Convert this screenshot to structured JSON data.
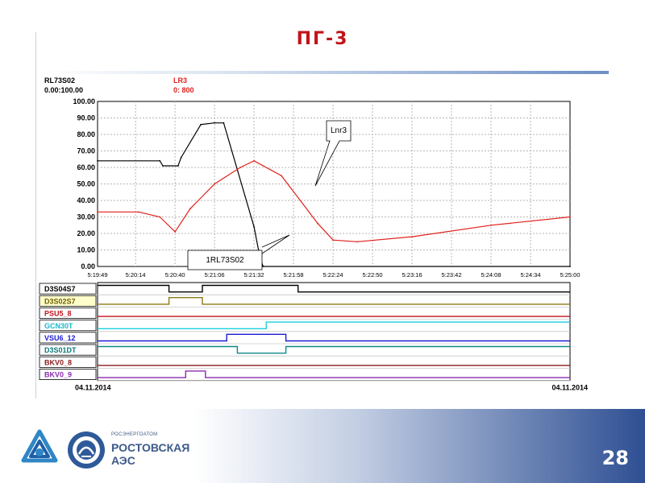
{
  "slide": {
    "title": "ПГ-3",
    "page_number": "28",
    "colors": {
      "title": "#c0141c",
      "accent": "#2e4f93"
    }
  },
  "branding": {
    "logo_icon": "rosatom-logo-icon",
    "emblem_icon": "rostov-npp-emblem-icon",
    "company_small": "РОСЭНЕРГОАТОМ",
    "plant_line1": "РОСТОВСКАЯ",
    "plant_line2": "АЭС"
  },
  "chart_data": {
    "type": "line",
    "x_ticks": [
      "5:19:49",
      "5:20:14",
      "5:20:40",
      "5:21:06",
      "5:21:32",
      "5:21:58",
      "5:22:24",
      "5:22:50",
      "5:23:16",
      "5:23:42",
      "5:24:08",
      "5:24:34",
      "5:25:00"
    ],
    "yticks": [
      "100.00",
      "90.00",
      "80.00",
      "70.00",
      "60.00",
      "50.00",
      "40.00",
      "30.00",
      "20.00",
      "10.00",
      "0.00"
    ],
    "ylim": [
      0,
      100
    ],
    "grid": true,
    "series_headers": [
      {
        "name": "RL73S02",
        "range": "0.00:100.00",
        "color": "#000000"
      },
      {
        "name": "LR3",
        "range": "0: 800",
        "color": "#e0201c"
      }
    ],
    "series": [
      {
        "name": "RL73S02",
        "color": "#000000",
        "x": [
          "5:19:49",
          "5:20:30",
          "5:20:32",
          "5:20:42",
          "5:20:44",
          "5:20:57",
          "5:21:06",
          "5:21:12",
          "5:21:32",
          "5:21:36",
          "5:21:38",
          "5:25:00"
        ],
        "values": [
          64,
          64,
          61,
          61,
          66,
          86,
          87,
          87,
          24,
          5,
          0,
          0
        ]
      },
      {
        "name": "LR3",
        "color": "#e0201c",
        "x": [
          "5:19:49",
          "5:20:16",
          "5:20:30",
          "5:20:40",
          "5:20:50",
          "5:21:06",
          "5:21:23",
          "5:21:32",
          "5:21:50",
          "5:22:14",
          "5:22:24",
          "5:22:40",
          "5:23:16",
          "5:24:08",
          "5:25:00"
        ],
        "values": [
          33,
          33,
          30,
          21,
          35,
          50,
          60,
          64,
          55,
          26,
          16,
          15,
          18,
          25,
          30
        ]
      }
    ],
    "annotations": [
      {
        "text": "Lnr3",
        "target_series": "LR3"
      },
      {
        "text": "1RL73S02",
        "target_series": "RL73S02"
      }
    ],
    "digital_traces": [
      {
        "name": "D3S04S7",
        "color": "#000000",
        "label_bg": "#ffffff",
        "text_color": "#000000",
        "segments": [
          [
            "5:19:49",
            "5:20:36",
            1
          ],
          [
            "5:20:36",
            "5:20:58",
            0
          ],
          [
            "5:20:58",
            "5:22:01",
            1
          ],
          [
            "5:22:01",
            "5:25:00",
            0
          ]
        ]
      },
      {
        "name": "D3S02S7",
        "color": "#8a7a10",
        "label_bg": "#ffffcc",
        "text_color": "#6b5e00",
        "segments": [
          [
            "5:19:49",
            "5:20:36",
            0
          ],
          [
            "5:20:36",
            "5:20:58",
            1
          ],
          [
            "5:20:58",
            "5:25:00",
            0
          ]
        ]
      },
      {
        "name": "PSU5_8",
        "color": "#c0141c",
        "label_bg": "#ffffff",
        "text_color": "#c0141c",
        "segments": [
          [
            "5:19:49",
            "5:25:00",
            0
          ]
        ]
      },
      {
        "name": "GCN30T",
        "color": "#19d1e0",
        "label_bg": "#ffffff",
        "text_color": "#19b8cc",
        "segments": [
          [
            "5:19:49",
            "5:21:40",
            0
          ],
          [
            "5:21:40",
            "5:25:00",
            1
          ]
        ]
      },
      {
        "name": "VSU6_12",
        "color": "#1a1ad6",
        "label_bg": "#ffffff",
        "text_color": "#1a1ad6",
        "segments": [
          [
            "5:19:49",
            "5:21:14",
            0
          ],
          [
            "5:21:14",
            "5:21:53",
            1
          ],
          [
            "5:21:53",
            "5:25:00",
            0
          ]
        ]
      },
      {
        "name": "D3S01DT",
        "color": "#0d8a8a",
        "label_bg": "#ffffff",
        "text_color": "#0d7a7a",
        "segments": [
          [
            "5:19:49",
            "5:21:21",
            1
          ],
          [
            "5:21:21",
            "5:21:53",
            0
          ],
          [
            "5:21:53",
            "5:25:00",
            1
          ]
        ]
      },
      {
        "name": "BKV0_8",
        "color": "#8b1a1a",
        "label_bg": "#ffffff",
        "text_color": "#8b1a1a",
        "segments": [
          [
            "5:19:49",
            "5:25:00",
            0
          ]
        ]
      },
      {
        "name": "BKV0_9",
        "color": "#8b2bb0",
        "label_bg": "#ffffff",
        "text_color": "#8b2bb0",
        "segments": [
          [
            "5:19:49",
            "5:20:47",
            0
          ],
          [
            "5:20:47",
            "5:21:00",
            1
          ],
          [
            "5:21:00",
            "5:25:00",
            0
          ]
        ]
      }
    ],
    "date_left": "04.11.2014",
    "date_right": "04.11.2014"
  }
}
